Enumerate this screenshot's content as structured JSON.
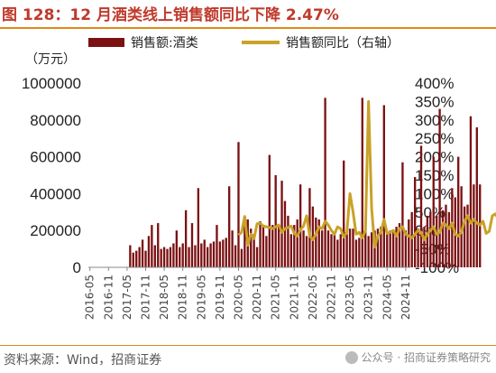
{
  "title": "图 128：12 月酒类线上销售额同比下降 2.47%",
  "source": "资料来源：Wind，招商证券",
  "watermark": "公众号 · 招商证券策略研究",
  "colors": {
    "bar": "#7b1113",
    "line": "#c9a227",
    "accent": "#c0392b",
    "rule": "#e08a1a"
  },
  "chart_data": {
    "type": "bar",
    "title": "",
    "left_unit": "（万元）",
    "x_tick_labels": [
      "2016-05",
      "2016-11",
      "2017-05",
      "2017-11",
      "2018-05",
      "2018-11",
      "2019-05",
      "2019-11",
      "2020-05",
      "2020-11",
      "2021-05",
      "2021-11",
      "2022-05",
      "2022-11",
      "2023-05",
      "2023-11",
      "2024-05",
      "2024-11"
    ],
    "y_left_ticks": [
      "0",
      "200000",
      "400000",
      "600000",
      "800000",
      "1000000"
    ],
    "y_right_ticks": [
      "-100%",
      "-50%",
      "0%",
      "50%",
      "100%",
      "150%",
      "200%",
      "250%",
      "300%",
      "350%",
      "400%"
    ],
    "ylim_left": [
      0,
      1000000
    ],
    "ylim_right": [
      -100,
      400
    ],
    "x_start": "2016-05",
    "x_end": "2024-12",
    "series": [
      {
        "name": "销售额:酒类",
        "type": "bar",
        "axis": "left",
        "start": "2017-06",
        "values": [
          120000,
          80000,
          90000,
          110000,
          150000,
          90000,
          170000,
          230000,
          120000,
          240000,
          100000,
          110000,
          100000,
          110000,
          130000,
          200000,
          110000,
          130000,
          310000,
          110000,
          240000,
          120000,
          430000,
          130000,
          150000,
          110000,
          130000,
          140000,
          230000,
          140000,
          150000,
          160000,
          440000,
          200000,
          120000,
          680000,
          100000,
          230000,
          260000,
          210000,
          180000,
          110000,
          250000,
          230000,
          170000,
          610000,
          230000,
          500000,
          220000,
          470000,
          360000,
          280000,
          180000,
          230000,
          260000,
          450000,
          200000,
          170000,
          430000,
          330000,
          270000,
          260000,
          200000,
          920000,
          200000,
          180000,
          190000,
          150000,
          180000,
          580000,
          180000,
          210000,
          210000,
          150000,
          160000,
          920000,
          200000,
          170000,
          190000,
          200000,
          210000,
          220000,
          880000,
          190000,
          200000,
          200000,
          220000,
          240000,
          570000,
          200000,
          260000,
          300000,
          490000,
          210000,
          660000,
          220000,
          280000,
          300000,
          600000,
          280000,
          860000,
          310000,
          340000,
          300000,
          430000,
          380000,
          600000,
          440000,
          330000,
          340000,
          820000,
          450000,
          760000,
          450000
        ]
      },
      {
        "name": "销售额同比（右轴）",
        "type": "line",
        "axis": "right",
        "start": "2020-05",
        "values": [
          -12,
          -5,
          38,
          -40,
          -10,
          -22,
          18,
          20,
          12,
          10,
          8,
          5,
          10,
          15,
          -5,
          5,
          8,
          12,
          -8,
          -15,
          2,
          12,
          40,
          -15,
          -25,
          -10,
          10,
          5,
          25,
          15,
          0,
          -10,
          10,
          5,
          -18,
          -5,
          100,
          50,
          -10,
          -5,
          -20,
          0,
          350,
          60,
          -45,
          -15,
          -5,
          30,
          -8,
          -5,
          0,
          -15,
          5,
          10,
          -10,
          -15,
          -20,
          -10,
          0,
          -5,
          -25,
          -10,
          0,
          10,
          -10,
          -5,
          20,
          15,
          5,
          20,
          -10,
          -15,
          -5,
          25,
          40,
          20,
          30,
          20,
          15,
          25,
          -8,
          -2,
          40,
          45,
          30,
          35,
          5,
          -5,
          25,
          -3
        ]
      }
    ]
  }
}
